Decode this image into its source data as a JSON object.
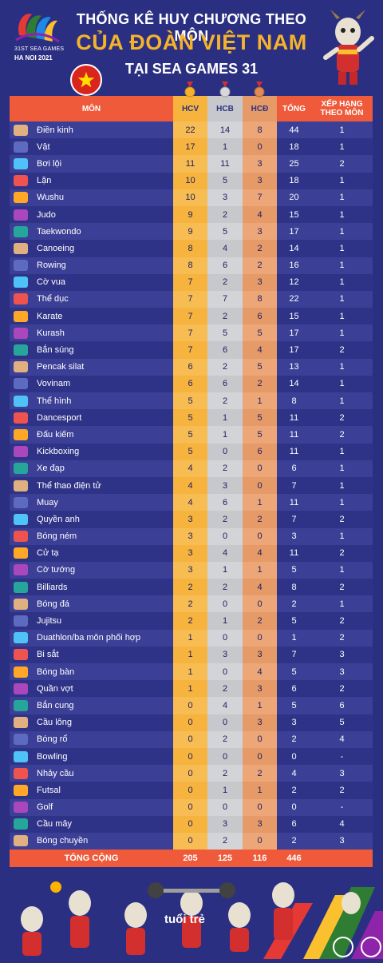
{
  "logo": {
    "line1": "31ST SEA GAMES",
    "line2": "HA NOI 2021"
  },
  "title": {
    "line1": "THỐNG KÊ HUY CHƯƠNG THEO MÔN",
    "line2": "CỦA ĐOÀN VIỆT NAM",
    "line3": "TẠI SEA GAMES 31"
  },
  "colors": {
    "background": "#2b2f82",
    "accent": "#ef5a3b",
    "gold": "#f6b33d",
    "silver": "#c7c8cc",
    "bronze": "#e59a67",
    "title_gold": "#f5b32a"
  },
  "chart_data": {
    "type": "table",
    "columns": [
      "MÔN",
      "HCV",
      "HCB",
      "HCĐ",
      "TỔNG",
      "XẾP HẠNG THEO MÔN"
    ],
    "rows": [
      {
        "mon": "Điền kinh",
        "hcv": "22",
        "hcb": "14",
        "hcd": "8",
        "tong": "44",
        "xh": "1"
      },
      {
        "mon": "Vật",
        "hcv": "17",
        "hcb": "1",
        "hcd": "0",
        "tong": "18",
        "xh": "1"
      },
      {
        "mon": "Bơi lội",
        "hcv": "11",
        "hcb": "11",
        "hcd": "3",
        "tong": "25",
        "xh": "2"
      },
      {
        "mon": "Lặn",
        "hcv": "10",
        "hcb": "5",
        "hcd": "3",
        "tong": "18",
        "xh": "1"
      },
      {
        "mon": "Wushu",
        "hcv": "10",
        "hcb": "3",
        "hcd": "7",
        "tong": "20",
        "xh": "1"
      },
      {
        "mon": "Judo",
        "hcv": "9",
        "hcb": "2",
        "hcd": "4",
        "tong": "15",
        "xh": "1"
      },
      {
        "mon": "Taekwondo",
        "hcv": "9",
        "hcb": "5",
        "hcd": "3",
        "tong": "17",
        "xh": "1"
      },
      {
        "mon": "Canoeing",
        "hcv": "8",
        "hcb": "4",
        "hcd": "2",
        "tong": "14",
        "xh": "1"
      },
      {
        "mon": "Rowing",
        "hcv": "8",
        "hcb": "6",
        "hcd": "2",
        "tong": "16",
        "xh": "1"
      },
      {
        "mon": "Cờ vua",
        "hcv": "7",
        "hcb": "2",
        "hcd": "3",
        "tong": "12",
        "xh": "1"
      },
      {
        "mon": "Thể dục",
        "hcv": "7",
        "hcb": "7",
        "hcd": "8",
        "tong": "22",
        "xh": "1"
      },
      {
        "mon": "Karate",
        "hcv": "7",
        "hcb": "2",
        "hcd": "6",
        "tong": "15",
        "xh": "1"
      },
      {
        "mon": "Kurash",
        "hcv": "7",
        "hcb": "5",
        "hcd": "5",
        "tong": "17",
        "xh": "1"
      },
      {
        "mon": "Bắn súng",
        "hcv": "7",
        "hcb": "6",
        "hcd": "4",
        "tong": "17",
        "xh": "2"
      },
      {
        "mon": "Pencak silat",
        "hcv": "6",
        "hcb": "2",
        "hcd": "5",
        "tong": "13",
        "xh": "1"
      },
      {
        "mon": "Vovinam",
        "hcv": "6",
        "hcb": "6",
        "hcd": "2",
        "tong": "14",
        "xh": "1"
      },
      {
        "mon": "Thể hình",
        "hcv": "5",
        "hcb": "2",
        "hcd": "1",
        "tong": "8",
        "xh": "1"
      },
      {
        "mon": "Dancesport",
        "hcv": "5",
        "hcb": "1",
        "hcd": "5",
        "tong": "11",
        "xh": "2"
      },
      {
        "mon": "Đấu kiếm",
        "hcv": "5",
        "hcb": "1",
        "hcd": "5",
        "tong": "11",
        "xh": "2"
      },
      {
        "mon": "Kickboxing",
        "hcv": "5",
        "hcb": "0",
        "hcd": "6",
        "tong": "11",
        "xh": "1"
      },
      {
        "mon": "Xe đạp",
        "hcv": "4",
        "hcb": "2",
        "hcd": "0",
        "tong": "6",
        "xh": "1"
      },
      {
        "mon": "Thể thao điện tử",
        "hcv": "4",
        "hcb": "3",
        "hcd": "0",
        "tong": "7",
        "xh": "1"
      },
      {
        "mon": "Muay",
        "hcv": "4",
        "hcb": "6",
        "hcd": "1",
        "tong": "11",
        "xh": "1"
      },
      {
        "mon": "Quyền anh",
        "hcv": "3",
        "hcb": "2",
        "hcd": "2",
        "tong": "7",
        "xh": "2"
      },
      {
        "mon": "Bóng ném",
        "hcv": "3",
        "hcb": "0",
        "hcd": "0",
        "tong": "3",
        "xh": "1"
      },
      {
        "mon": "Cử tạ",
        "hcv": "3",
        "hcb": "4",
        "hcd": "4",
        "tong": "11",
        "xh": "2"
      },
      {
        "mon": "Cờ tướng",
        "hcv": "3",
        "hcb": "1",
        "hcd": "1",
        "tong": "5",
        "xh": "1"
      },
      {
        "mon": "Billiards",
        "hcv": "2",
        "hcb": "2",
        "hcd": "4",
        "tong": "8",
        "xh": "2"
      },
      {
        "mon": "Bóng đá",
        "hcv": "2",
        "hcb": "0",
        "hcd": "0",
        "tong": "2",
        "xh": "1"
      },
      {
        "mon": "Jujitsu",
        "hcv": "2",
        "hcb": "1",
        "hcd": "2",
        "tong": "5",
        "xh": "2"
      },
      {
        "mon": "Duathlon/ba môn phối hợp",
        "hcv": "1",
        "hcb": "0",
        "hcd": "0",
        "tong": "1",
        "xh": "2"
      },
      {
        "mon": "Bi sắt",
        "hcv": "1",
        "hcb": "3",
        "hcd": "3",
        "tong": "7",
        "xh": "3"
      },
      {
        "mon": "Bóng bàn",
        "hcv": "1",
        "hcb": "0",
        "hcd": "4",
        "tong": "5",
        "xh": "3"
      },
      {
        "mon": "Quần vợt",
        "hcv": "1",
        "hcb": "2",
        "hcd": "3",
        "tong": "6",
        "xh": "2"
      },
      {
        "mon": "Bắn cung",
        "hcv": "0",
        "hcb": "4",
        "hcd": "1",
        "tong": "5",
        "xh": "6"
      },
      {
        "mon": "Cầu lông",
        "hcv": "0",
        "hcb": "0",
        "hcd": "3",
        "tong": "3",
        "xh": "5"
      },
      {
        "mon": "Bóng rổ",
        "hcv": "0",
        "hcb": "2",
        "hcd": "0",
        "tong": "2",
        "xh": "4"
      },
      {
        "mon": "Bowling",
        "hcv": "0",
        "hcb": "0",
        "hcd": "0",
        "tong": "0",
        "xh": "-"
      },
      {
        "mon": "Nhảy cầu",
        "hcv": "0",
        "hcb": "2",
        "hcd": "2",
        "tong": "4",
        "xh": "3"
      },
      {
        "mon": "Futsal",
        "hcv": "0",
        "hcb": "1",
        "hcd": "1",
        "tong": "2",
        "xh": "2"
      },
      {
        "mon": "Golf",
        "hcv": "0",
        "hcb": "0",
        "hcd": "0",
        "tong": "0",
        "xh": "-"
      },
      {
        "mon": "Cầu mây",
        "hcv": "0",
        "hcb": "3",
        "hcd": "3",
        "tong": "6",
        "xh": "4"
      },
      {
        "mon": "Bóng chuyền",
        "hcv": "0",
        "hcb": "2",
        "hcd": "0",
        "tong": "2",
        "xh": "3"
      }
    ],
    "total": {
      "label": "TỔNG CỘNG",
      "hcv": "205",
      "hcb": "125",
      "hcd": "116",
      "tong": "446"
    }
  },
  "footer": {
    "brand": "tuổi trẻ"
  }
}
